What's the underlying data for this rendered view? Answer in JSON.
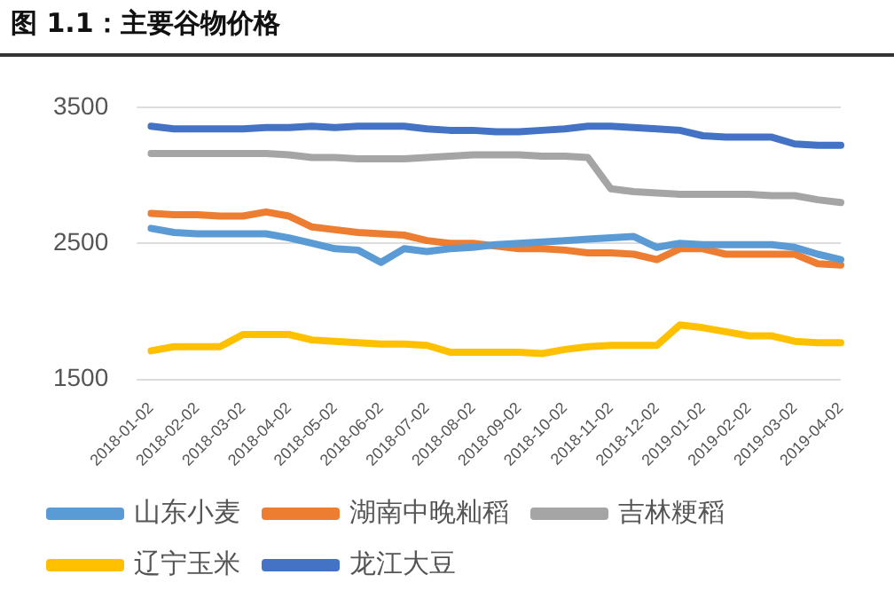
{
  "chart_data": {
    "type": "line",
    "title": "图 1.1：主要谷物价格",
    "categories": [
      "2018-01-02",
      null,
      "2018-02-02",
      null,
      "2018-03-02",
      null,
      "2018-04-02",
      null,
      "2018-05-02",
      null,
      "2018-06-02",
      null,
      "2018-07-02",
      null,
      "2018-08-02",
      null,
      "2018-09-02",
      null,
      "2018-10-02",
      null,
      "2018-11-02",
      null,
      "2018-12-02",
      null,
      "2019-01-02",
      null,
      "2019-02-02",
      null,
      "2019-03-02",
      null,
      "2019-04-02"
    ],
    "series": [
      {
        "name": "山东小麦",
        "color": "#5b9bd5",
        "values": [
          2610,
          2580,
          2570,
          2570,
          2570,
          2570,
          2540,
          2500,
          2460,
          2450,
          2360,
          2460,
          2440,
          2460,
          2470,
          2490,
          2500,
          2510,
          2520,
          2530,
          2540,
          2550,
          2470,
          2500,
          2490,
          2490,
          2490,
          2490,
          2470,
          2420,
          2380
        ]
      },
      {
        "name": "湖南中晚籼稻",
        "color": "#ed7d31",
        "values": [
          2720,
          2710,
          2710,
          2700,
          2700,
          2730,
          2700,
          2620,
          2600,
          2580,
          2570,
          2560,
          2520,
          2500,
          2500,
          2480,
          2460,
          2460,
          2450,
          2430,
          2430,
          2420,
          2380,
          2460,
          2460,
          2420,
          2420,
          2420,
          2420,
          2350,
          2340
        ]
      },
      {
        "name": "吉林粳稻",
        "color": "#a5a5a5",
        "values": [
          3160,
          3160,
          3160,
          3160,
          3160,
          3160,
          3150,
          3130,
          3130,
          3120,
          3120,
          3120,
          3130,
          3140,
          3150,
          3150,
          3150,
          3140,
          3140,
          3130,
          2900,
          2880,
          2870,
          2860,
          2860,
          2860,
          2860,
          2850,
          2850,
          2820,
          2800
        ]
      },
      {
        "name": "辽宁玉米",
        "color": "#ffc000",
        "values": [
          1710,
          1740,
          1740,
          1740,
          1830,
          1830,
          1830,
          1790,
          1780,
          1770,
          1760,
          1760,
          1750,
          1700,
          1700,
          1700,
          1700,
          1690,
          1720,
          1740,
          1750,
          1750,
          1750,
          1900,
          1880,
          1850,
          1820,
          1820,
          1780,
          1770,
          1770
        ]
      },
      {
        "name": "龙江大豆",
        "color": "#4472c4",
        "values": [
          3360,
          3340,
          3340,
          3340,
          3340,
          3350,
          3350,
          3360,
          3350,
          3360,
          3360,
          3360,
          3340,
          3330,
          3330,
          3320,
          3320,
          3330,
          3340,
          3360,
          3360,
          3350,
          3340,
          3330,
          3290,
          3280,
          3280,
          3280,
          3230,
          3220,
          3220
        ]
      }
    ],
    "ylim": [
      1500,
      3500
    ],
    "yticks": [
      1500,
      2500,
      3500
    ],
    "grid": "y",
    "legend": "bottom",
    "marker": "none",
    "line_style": "solid"
  }
}
